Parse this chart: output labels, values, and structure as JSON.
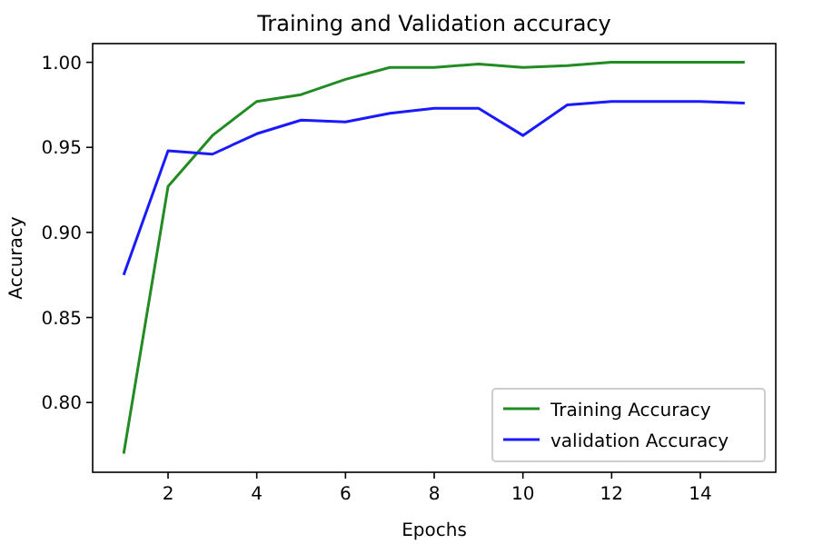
{
  "chart_data": {
    "type": "line",
    "title": "Training and Validation accuracy",
    "xlabel": "Epochs",
    "ylabel": "Accuracy",
    "x": [
      1,
      2,
      3,
      4,
      5,
      6,
      7,
      8,
      9,
      10,
      11,
      12,
      13,
      14,
      15
    ],
    "series": [
      {
        "name": "Training Accuracy",
        "color": "#228b22",
        "values": [
          0.77,
          0.927,
          0.957,
          0.977,
          0.981,
          0.99,
          0.997,
          0.997,
          0.999,
          0.997,
          0.998,
          1.0,
          1.0,
          1.0,
          1.0
        ]
      },
      {
        "name": "validation Accuracy",
        "color": "#1a1aff",
        "values": [
          0.875,
          0.948,
          0.946,
          0.958,
          0.966,
          0.965,
          0.97,
          0.973,
          0.973,
          0.957,
          0.975,
          0.977,
          0.977,
          0.977,
          0.976
        ]
      }
    ],
    "xlim": [
      0.3,
      15.7
    ],
    "ylim": [
      0.759,
      1.011
    ],
    "xticks": [
      2,
      4,
      6,
      8,
      10,
      12,
      14
    ],
    "yticks": [
      {
        "value": 0.8,
        "label": "0.80"
      },
      {
        "value": 0.85,
        "label": "0.85"
      },
      {
        "value": 0.9,
        "label": "0.90"
      },
      {
        "value": 0.95,
        "label": "0.95"
      },
      {
        "value": 1.0,
        "label": "1.00"
      }
    ],
    "legend": "bottom right",
    "grid": false
  }
}
